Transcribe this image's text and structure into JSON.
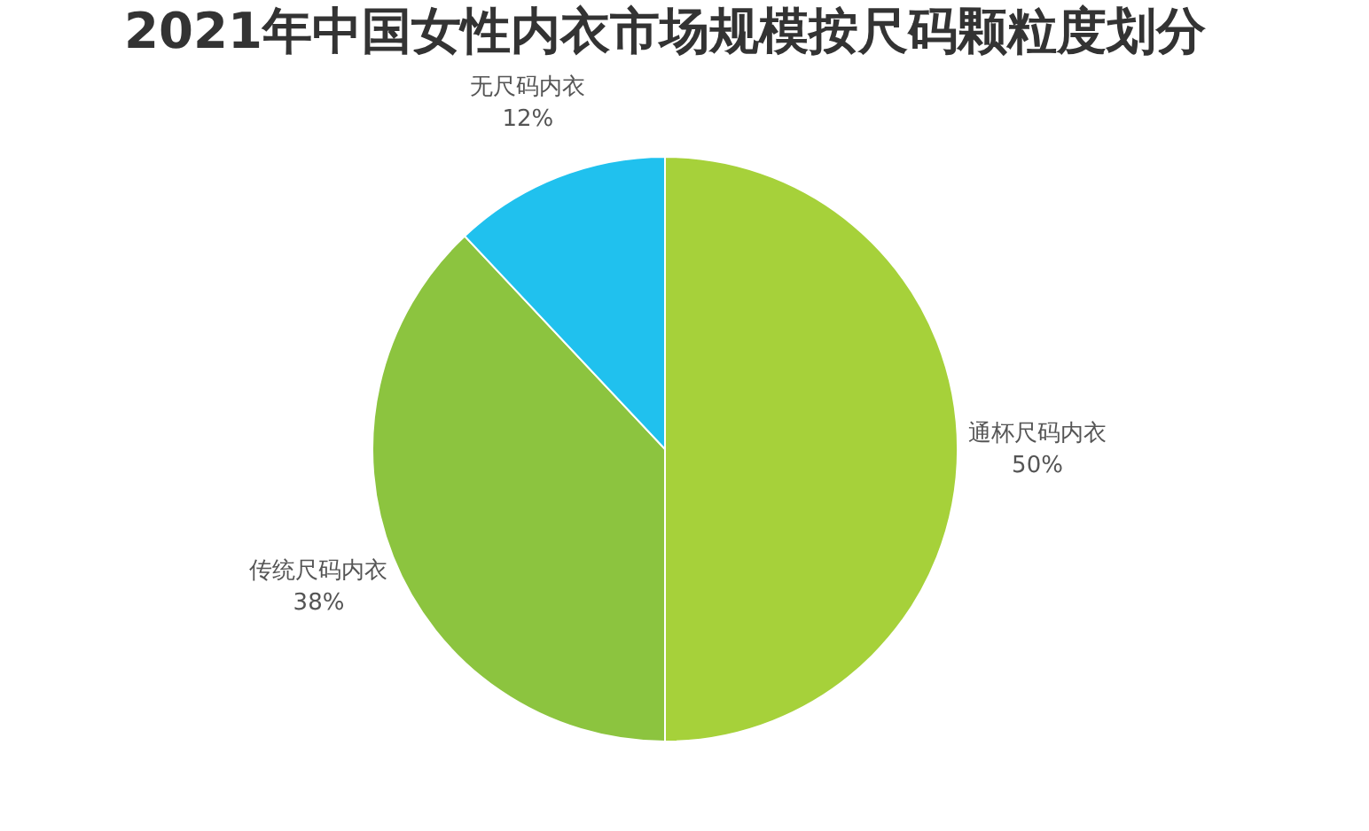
{
  "chart_data": {
    "type": "pie",
    "title": "2021年中国女性内衣市场规模按尺码颗粒度划分",
    "categories": [
      "通杯尺码内衣",
      "传统尺码内衣",
      "无尺码内衣"
    ],
    "values": [
      50,
      38,
      12
    ],
    "colors": [
      "#a6d13a",
      "#8cc43f",
      "#20c1ee"
    ],
    "value_labels": [
      "50%",
      "38%",
      "12%"
    ],
    "legend": false
  }
}
